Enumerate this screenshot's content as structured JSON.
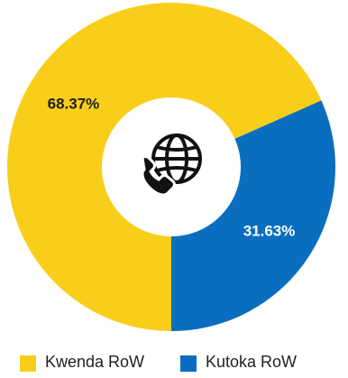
{
  "chart_data": {
    "type": "pie",
    "donut": true,
    "categories": [
      "Kwenda RoW",
      "Kutoka RoW"
    ],
    "values": [
      68.37,
      31.63
    ],
    "value_labels": [
      "68.37%",
      "31.63%"
    ],
    "colors": [
      "#F9CE1A",
      "#0A6EC0"
    ],
    "legend_position": "bottom",
    "center_icon": "globe-phone-icon",
    "label_colors": [
      "#1F1F1F",
      "#FFFFFF"
    ]
  }
}
